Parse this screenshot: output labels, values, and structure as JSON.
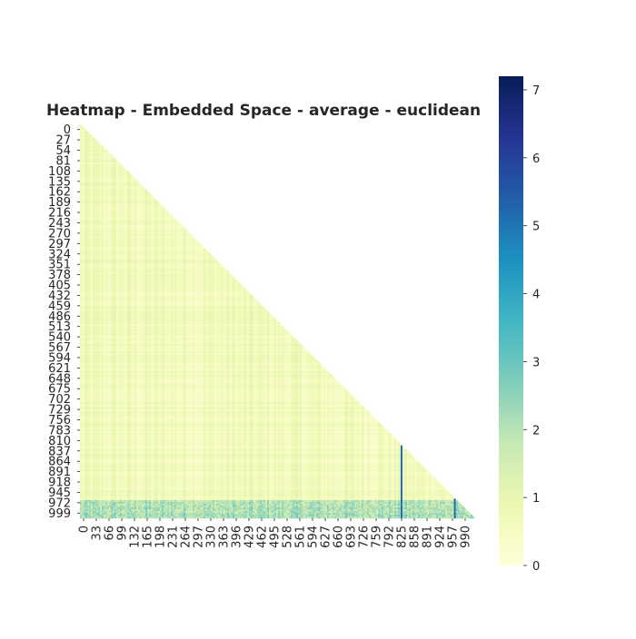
{
  "chart_data": {
    "type": "heatmap",
    "title": "Heatmap - Embedded Space - average - euclidean",
    "matrix_size": 1000,
    "mask": "upper-triangle",
    "colormap": "YlGnBu",
    "grid": false,
    "y_tick_labels": [
      "0",
      "27",
      "54",
      "81",
      "108",
      "135",
      "162",
      "189",
      "216",
      "243",
      "270",
      "297",
      "324",
      "351",
      "378",
      "405",
      "432",
      "459",
      "486",
      "513",
      "540",
      "567",
      "594",
      "621",
      "648",
      "675",
      "702",
      "729",
      "756",
      "783",
      "810",
      "837",
      "864",
      "891",
      "918",
      "945",
      "972",
      "999"
    ],
    "x_tick_labels": [
      "0",
      "33",
      "66",
      "99",
      "132",
      "165",
      "198",
      "231",
      "264",
      "297",
      "330",
      "363",
      "396",
      "429",
      "462",
      "495",
      "528",
      "561",
      "594",
      "627",
      "660",
      "693",
      "726",
      "759",
      "792",
      "825",
      "858",
      "891",
      "924",
      "957",
      "990"
    ],
    "colorbar": {
      "range": [
        0,
        7.2
      ],
      "ticks": [
        "0",
        "1",
        "2",
        "3",
        "4",
        "5",
        "6",
        "7"
      ],
      "position": "right"
    },
    "typical_value_range": [
      0.3,
      1.2
    ],
    "high_distance_rows": [
      955,
      999
    ],
    "high_distance_columns": [
      815,
      950
    ]
  }
}
